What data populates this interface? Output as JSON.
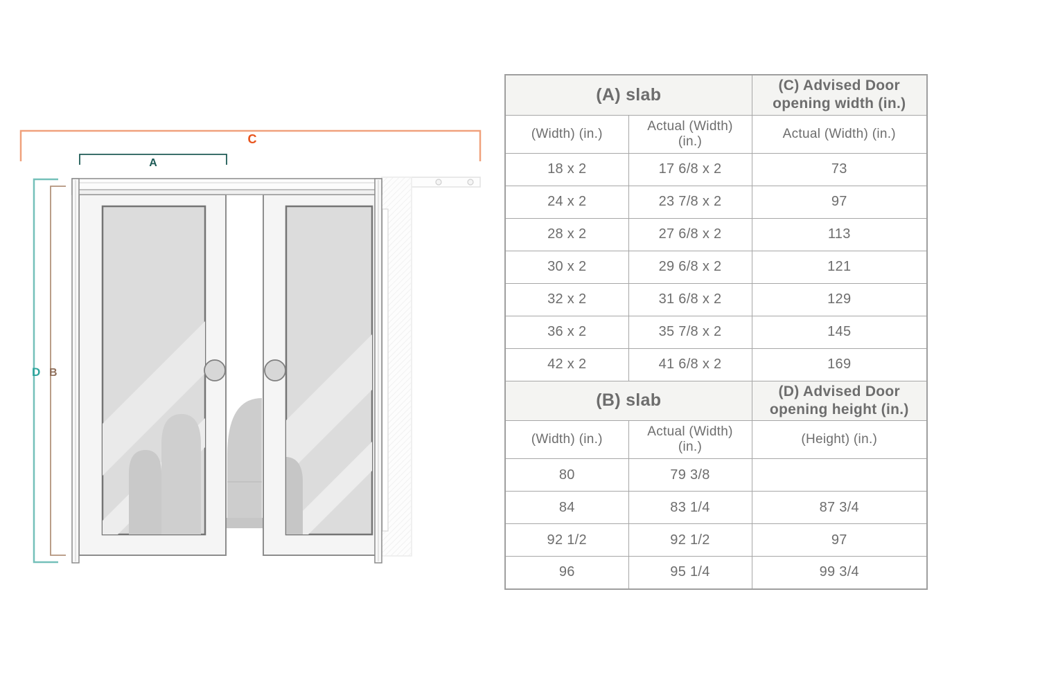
{
  "diagram": {
    "title": "double-door-opening-diagram",
    "labels": {
      "a": "A",
      "b": "B",
      "c": "C",
      "d": "D"
    },
    "colors": {
      "label_a": "#1e5b56",
      "label_b": "#8f6f5a",
      "label_c": "#e8541c",
      "label_d": "#2ca49c",
      "bracket_a": "#1e5b56",
      "bracket_b": "#b3937c",
      "bracket_c": "#f0a17c",
      "bracket_d": "#74c0b9"
    }
  },
  "table": {
    "accent_colors": {
      "section_a": "#1e5b56",
      "section_b": "#9a7866",
      "section_c": "#ee5a22",
      "section_d": "#2ca49c",
      "header_background": "#f4f4f2",
      "border": "#a6a6a6",
      "body_text": "#6d6d6d"
    },
    "sections": [
      {
        "slab": "(A) slab",
        "advised": "(C) Advised Door opening width (in.)",
        "cols": [
          "(Width) (in.)",
          "Actual (Width) (in.)",
          "Actual (Width) (in.)"
        ],
        "rows": [
          [
            "18 x 2",
            "17 6/8 x 2",
            "73"
          ],
          [
            "24 x 2",
            "23 7/8 x 2",
            "97"
          ],
          [
            "28 x 2",
            "27 6/8 x 2",
            "113"
          ],
          [
            "30 x 2",
            "29 6/8 x 2",
            "121"
          ],
          [
            "32 x 2",
            "31 6/8 x 2",
            "129"
          ],
          [
            "36 x 2",
            "35 7/8 x 2",
            "145"
          ],
          [
            "42 x 2",
            "41 6/8 x 2",
            "169"
          ]
        ]
      },
      {
        "slab": "(B) slab",
        "advised": "(D) Advised Door opening height (in.)",
        "cols": [
          "(Width) (in.)",
          "Actual (Width) (in.)",
          "(Height) (in.)"
        ],
        "rows": [
          [
            "80",
            "79 3/8",
            ""
          ],
          [
            "84",
            "83 1/4",
            "87 3/4"
          ],
          [
            "92 1/2",
            "92 1/2",
            "97"
          ],
          [
            "96",
            "95 1/4",
            "99 3/4"
          ]
        ]
      }
    ]
  }
}
